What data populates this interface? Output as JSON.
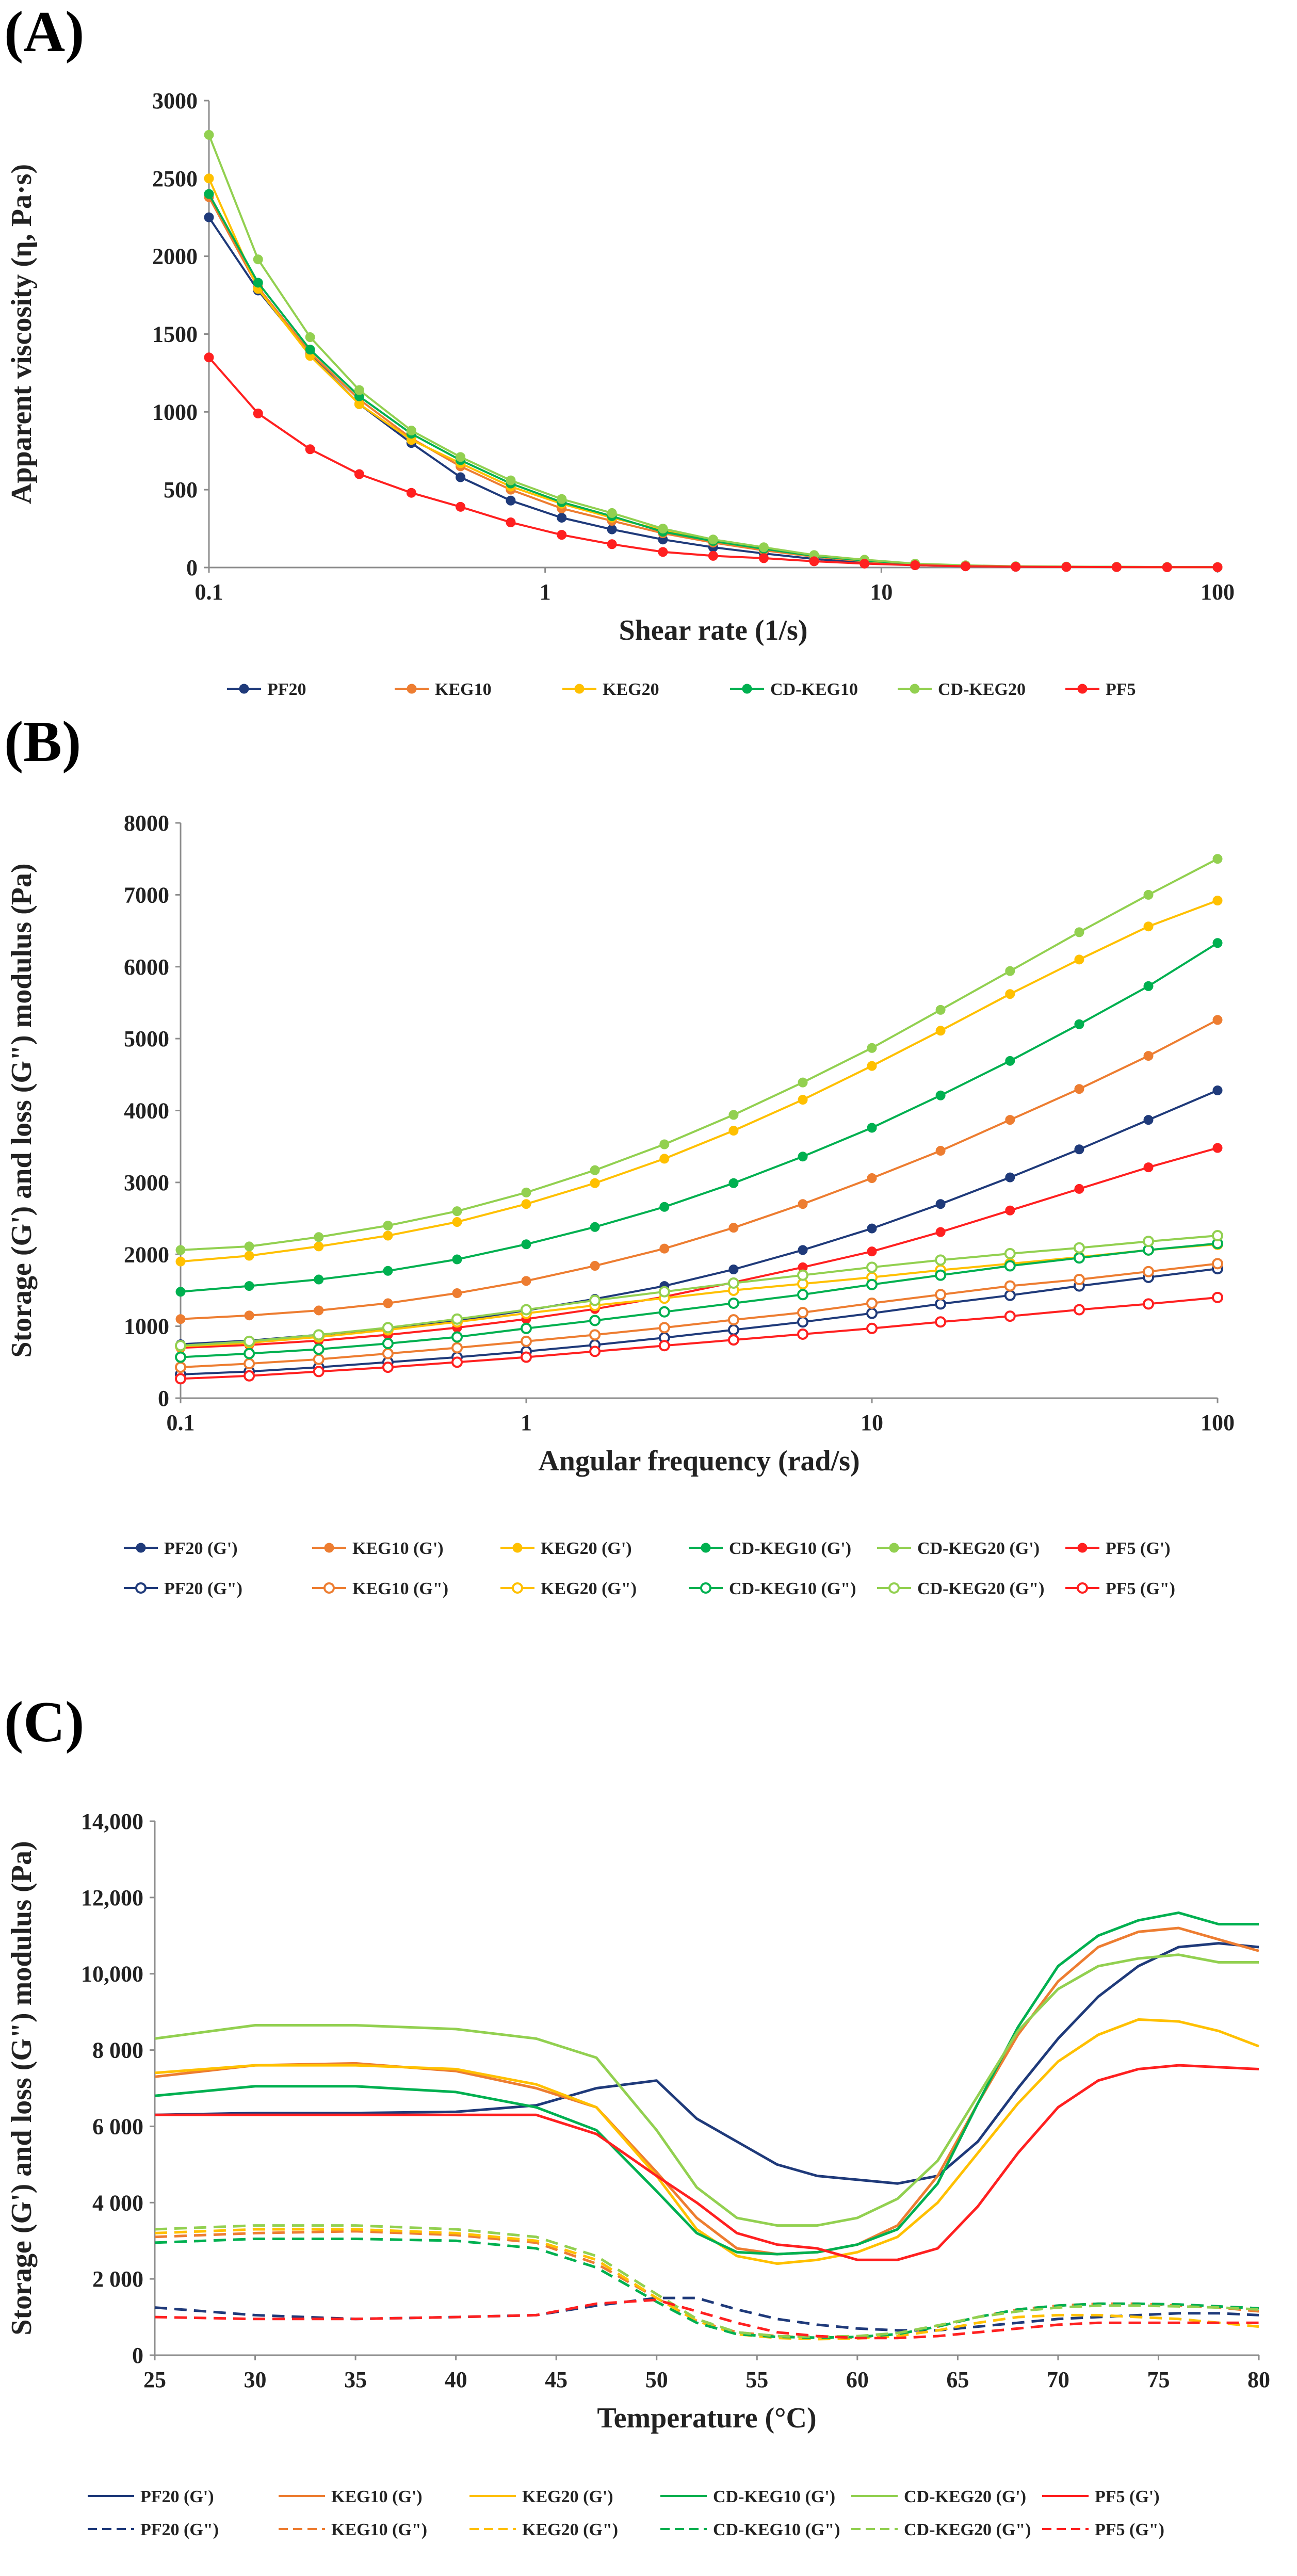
{
  "panels": {
    "a": {
      "label": "(A)"
    },
    "b": {
      "label": "(B)"
    },
    "c": {
      "label": "(C)"
    }
  },
  "chart_data": [
    {
      "panel": "(A)",
      "type": "line",
      "xlabel": "Shear rate (1/s)",
      "ylabel": "Apparent viscosity (η, Pa·s)",
      "x_scale": "log",
      "xlim": [
        0.1,
        100
      ],
      "ylim": [
        0,
        3000
      ],
      "x_ticks": [
        0.1,
        1,
        10,
        100
      ],
      "x_tick_labels": [
        "0.1",
        "1",
        "10",
        "100"
      ],
      "y_ticks": [
        0,
        500,
        1000,
        1500,
        2000,
        2500,
        3000
      ],
      "y_tick_labels": [
        "0",
        "500",
        "1000",
        "1500",
        "2000",
        "2500",
        "3000"
      ],
      "grid": false,
      "legend_position": "bottom",
      "x": [
        0.1,
        0.14,
        0.2,
        0.28,
        0.4,
        0.56,
        0.79,
        1.12,
        1.58,
        2.24,
        3.16,
        4.47,
        6.31,
        8.91,
        12.6,
        17.8,
        25.1,
        35.5,
        50.1,
        70.8,
        100
      ],
      "series": [
        {
          "name": "PF20",
          "color": "#1f3a7a",
          "values": [
            2250,
            1780,
            1370,
            1050,
            800,
            580,
            430,
            320,
            245,
            180,
            130,
            90,
            55,
            30,
            15,
            8,
            5,
            4,
            3,
            2,
            2
          ]
        },
        {
          "name": "KEG10",
          "color": "#ed7d31",
          "values": [
            2380,
            1800,
            1380,
            1080,
            830,
            650,
            500,
            380,
            300,
            220,
            160,
            110,
            70,
            40,
            20,
            10,
            6,
            4,
            3,
            2,
            2
          ]
        },
        {
          "name": "KEG20",
          "color": "#ffc000",
          "values": [
            2500,
            1790,
            1360,
            1050,
            820,
            670,
            520,
            410,
            320,
            240,
            170,
            120,
            75,
            45,
            22,
            12,
            7,
            5,
            4,
            3,
            2
          ]
        },
        {
          "name": "CD-KEG10",
          "color": "#00b050",
          "values": [
            2400,
            1830,
            1400,
            1100,
            860,
            690,
            540,
            420,
            330,
            230,
            170,
            120,
            75,
            45,
            22,
            12,
            7,
            5,
            4,
            3,
            2
          ]
        },
        {
          "name": "CD-KEG20",
          "color": "#92d050",
          "values": [
            2780,
            1980,
            1480,
            1140,
            880,
            710,
            560,
            440,
            350,
            250,
            180,
            130,
            80,
            50,
            25,
            14,
            8,
            6,
            4,
            3,
            3
          ]
        },
        {
          "name": "PF5",
          "color": "#ff2020",
          "values": [
            1350,
            990,
            760,
            600,
            480,
            390,
            290,
            210,
            150,
            100,
            75,
            60,
            40,
            25,
            15,
            8,
            5,
            4,
            3,
            2,
            2
          ]
        }
      ]
    },
    {
      "panel": "(B)",
      "type": "line",
      "xlabel": "Angular frequency (rad/s)",
      "ylabel": "Storage (G') and loss (G\") modulus (Pa)",
      "x_scale": "log",
      "xlim": [
        0.1,
        100
      ],
      "ylim": [
        0,
        8000
      ],
      "x_ticks": [
        0.1,
        1,
        10,
        100
      ],
      "x_tick_labels": [
        "0.1",
        "1",
        "10",
        "100"
      ],
      "y_ticks": [
        0,
        1000,
        2000,
        3000,
        4000,
        5000,
        6000,
        7000,
        8000
      ],
      "y_tick_labels": [
        "0",
        "1000",
        "2000",
        "3000",
        "4000",
        "5000",
        "6000",
        "7000",
        "8000"
      ],
      "grid": false,
      "legend_position": "bottom",
      "x": [
        0.1,
        0.158,
        0.251,
        0.398,
        0.631,
        1,
        1.58,
        2.51,
        3.98,
        6.31,
        10,
        15.8,
        25.1,
        39.8,
        63.1,
        100
      ],
      "series": [
        {
          "name": "PF20 (G')",
          "color": "#1f3a7a",
          "marker": "filled",
          "values": [
            750,
            800,
            880,
            970,
            1080,
            1220,
            1380,
            1560,
            1790,
            2060,
            2360,
            2700,
            3070,
            3460,
            3870,
            4280
          ]
        },
        {
          "name": "KEG10 (G')",
          "color": "#ed7d31",
          "marker": "filled",
          "values": [
            1100,
            1150,
            1220,
            1320,
            1460,
            1630,
            1840,
            2080,
            2370,
            2700,
            3060,
            3440,
            3870,
            4300,
            4760,
            5260
          ]
        },
        {
          "name": "KEG20 (G')",
          "color": "#ffc000",
          "marker": "filled",
          "values": [
            1900,
            1980,
            2110,
            2260,
            2450,
            2700,
            2990,
            3330,
            3720,
            4150,
            4620,
            5110,
            5620,
            6100,
            6560,
            6920
          ]
        },
        {
          "name": "CD-KEG10 (G')",
          "color": "#00b050",
          "marker": "filled",
          "values": [
            1480,
            1560,
            1650,
            1770,
            1930,
            2140,
            2380,
            2660,
            2990,
            3360,
            3760,
            4210,
            4690,
            5200,
            5730,
            6330
          ]
        },
        {
          "name": "CD-KEG20 (G')",
          "color": "#92d050",
          "marker": "filled",
          "values": [
            2060,
            2110,
            2240,
            2400,
            2600,
            2860,
            3170,
            3530,
            3940,
            4390,
            4870,
            5400,
            5940,
            6480,
            7000,
            7500
          ]
        },
        {
          "name": "PF5 (G')",
          "color": "#ff2020",
          "marker": "filled",
          "values": [
            700,
            740,
            800,
            880,
            980,
            1100,
            1240,
            1410,
            1610,
            1820,
            2040,
            2310,
            2610,
            2910,
            3210,
            3480
          ]
        },
        {
          "name": "PF20 (G\")",
          "color": "#1f3a7a",
          "marker": "open",
          "values": [
            330,
            370,
            430,
            500,
            570,
            650,
            740,
            840,
            950,
            1060,
            1180,
            1310,
            1430,
            1560,
            1680,
            1800
          ]
        },
        {
          "name": "KEG10 (G\")",
          "color": "#ed7d31",
          "marker": "open",
          "values": [
            430,
            480,
            540,
            620,
            700,
            790,
            880,
            980,
            1090,
            1190,
            1320,
            1440,
            1560,
            1650,
            1760,
            1870
          ]
        },
        {
          "name": "KEG20 (G\")",
          "color": "#ffc000",
          "marker": "open",
          "values": [
            720,
            770,
            850,
            950,
            1060,
            1180,
            1290,
            1390,
            1500,
            1590,
            1680,
            1780,
            1870,
            1960,
            2060,
            2140
          ]
        },
        {
          "name": "CD-KEG10 (G\")",
          "color": "#00b050",
          "marker": "open",
          "values": [
            570,
            620,
            680,
            760,
            850,
            970,
            1080,
            1200,
            1320,
            1440,
            1580,
            1710,
            1840,
            1950,
            2060,
            2150
          ]
        },
        {
          "name": "CD-KEG20 (G\")",
          "color": "#92d050",
          "marker": "open",
          "values": [
            730,
            790,
            880,
            980,
            1100,
            1230,
            1360,
            1480,
            1600,
            1710,
            1820,
            1920,
            2010,
            2090,
            2180,
            2260
          ]
        },
        {
          "name": "PF5 (G\")",
          "color": "#ff2020",
          "marker": "open",
          "values": [
            270,
            310,
            370,
            430,
            500,
            570,
            650,
            730,
            810,
            890,
            970,
            1060,
            1140,
            1230,
            1310,
            1400
          ]
        }
      ]
    },
    {
      "panel": "(C)",
      "type": "line",
      "xlabel": "Temperature (°C)",
      "ylabel": "Storage (G') and loss (G\") modulus (Pa)",
      "xlim": [
        25,
        80
      ],
      "ylim": [
        0,
        14000
      ],
      "x_ticks": [
        25,
        30,
        35,
        40,
        45,
        50,
        55,
        60,
        65,
        70,
        75,
        80
      ],
      "x_tick_labels": [
        "25",
        "30",
        "35",
        "40",
        "45",
        "50",
        "55",
        "60",
        "65",
        "70",
        "75",
        "80"
      ],
      "y_ticks": [
        0,
        2000,
        4000,
        6000,
        8000,
        10000,
        12000,
        14000
      ],
      "y_tick_labels": [
        "0",
        "2 000",
        "4 000",
        "6 000",
        "8 000",
        "10,000",
        "12,000",
        "14,000"
      ],
      "grid": false,
      "legend_position": "bottom",
      "x": [
        25,
        30,
        35,
        40,
        44,
        47,
        50,
        52,
        54,
        56,
        58,
        60,
        62,
        64,
        66,
        68,
        70,
        72,
        74,
        76,
        78,
        80
      ],
      "series": [
        {
          "name": "PF20 (G')",
          "color": "#1f3a7a",
          "style": "solid",
          "values": [
            6300,
            6350,
            6350,
            6380,
            6550,
            7000,
            7200,
            6200,
            5600,
            5000,
            4700,
            4600,
            4500,
            4700,
            5600,
            7000,
            8300,
            9400,
            10200,
            10700,
            10800,
            10700
          ]
        },
        {
          "name": "KEG10 (G')",
          "color": "#ed7d31",
          "style": "solid",
          "values": [
            7300,
            7600,
            7650,
            7450,
            7000,
            6500,
            4800,
            3600,
            2800,
            2650,
            2700,
            2900,
            3400,
            4700,
            6600,
            8400,
            9800,
            10700,
            11100,
            11200,
            10900,
            10600
          ]
        },
        {
          "name": "KEG20 (G')",
          "color": "#ffc000",
          "style": "solid",
          "values": [
            7400,
            7600,
            7600,
            7500,
            7100,
            6500,
            4700,
            3300,
            2600,
            2400,
            2500,
            2700,
            3100,
            4000,
            5300,
            6600,
            7700,
            8400,
            8800,
            8750,
            8500,
            8100
          ]
        },
        {
          "name": "CD-KEG10 (G')",
          "color": "#00b050",
          "style": "solid",
          "values": [
            6800,
            7050,
            7050,
            6900,
            6500,
            5900,
            4300,
            3200,
            2700,
            2650,
            2700,
            2900,
            3300,
            4500,
            6600,
            8600,
            10200,
            11000,
            11400,
            11600,
            11300,
            11300
          ]
        },
        {
          "name": "CD-KEG20 (G')",
          "color": "#92d050",
          "style": "solid",
          "values": [
            8300,
            8650,
            8650,
            8550,
            8300,
            7800,
            5900,
            4400,
            3600,
            3400,
            3400,
            3600,
            4100,
            5100,
            6800,
            8500,
            9600,
            10200,
            10400,
            10500,
            10300,
            10300
          ]
        },
        {
          "name": "PF5 (G')",
          "color": "#ff2020",
          "style": "solid",
          "values": [
            6300,
            6300,
            6300,
            6300,
            6300,
            5800,
            4700,
            4000,
            3200,
            2900,
            2800,
            2500,
            2500,
            2800,
            3900,
            5300,
            6500,
            7200,
            7500,
            7600,
            7550,
            7500
          ]
        },
        {
          "name": "PF20 (G\")",
          "color": "#1f3a7a",
          "style": "dashed",
          "values": [
            1250,
            1050,
            950,
            1000,
            1050,
            1300,
            1500,
            1500,
            1200,
            950,
            800,
            700,
            650,
            650,
            750,
            850,
            950,
            1000,
            1050,
            1100,
            1100,
            1050
          ]
        },
        {
          "name": "KEG10 (G\")",
          "color": "#ed7d31",
          "style": "dashed",
          "values": [
            3100,
            3200,
            3250,
            3150,
            2950,
            2400,
            1500,
            900,
            600,
            500,
            450,
            470,
            550,
            750,
            1000,
            1200,
            1300,
            1350,
            1350,
            1300,
            1250,
            1150
          ]
        },
        {
          "name": "KEG20 (G\")",
          "color": "#ffc000",
          "style": "dashed",
          "values": [
            3200,
            3300,
            3300,
            3200,
            3000,
            2500,
            1500,
            900,
            550,
            450,
            420,
            440,
            500,
            650,
            850,
            1000,
            1050,
            1050,
            1000,
            950,
            850,
            750
          ]
        },
        {
          "name": "CD-KEG10 (G\")",
          "color": "#00b050",
          "style": "dashed",
          "values": [
            2950,
            3050,
            3050,
            3000,
            2800,
            2300,
            1400,
            850,
            550,
            480,
            460,
            480,
            550,
            750,
            1000,
            1200,
            1300,
            1350,
            1350,
            1330,
            1280,
            1230
          ]
        },
        {
          "name": "CD-KEG20 (G\")",
          "color": "#92d050",
          "style": "dashed",
          "values": [
            3300,
            3400,
            3400,
            3300,
            3100,
            2600,
            1600,
            950,
            600,
            500,
            480,
            500,
            580,
            780,
            1000,
            1150,
            1250,
            1300,
            1300,
            1280,
            1250,
            1200
          ]
        },
        {
          "name": "PF5 (G\")",
          "color": "#ff2020",
          "style": "dashed",
          "values": [
            1000,
            950,
            950,
            1000,
            1050,
            1350,
            1450,
            1150,
            850,
            600,
            500,
            450,
            450,
            500,
            600,
            700,
            800,
            850,
            850,
            850,
            850,
            850
          ]
        }
      ]
    }
  ]
}
